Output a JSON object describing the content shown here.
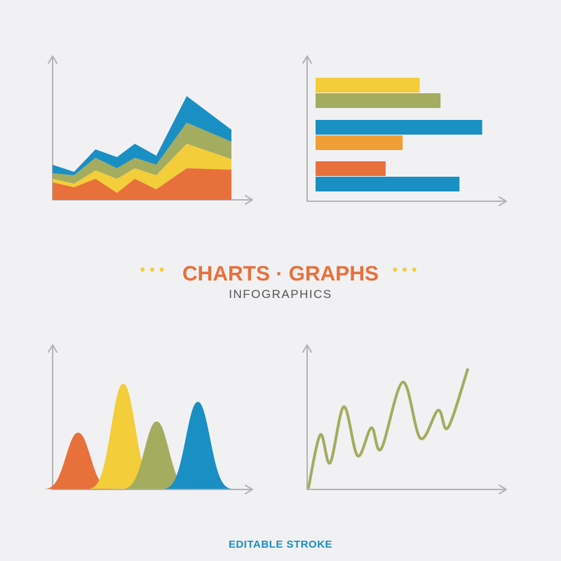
{
  "header": {
    "title": "CHARTS · GRAPHS",
    "subtitle": "INFOGRAPHICS"
  },
  "footer": "EDITABLE STROKE",
  "chart_data": [
    {
      "type": "area",
      "stacked": true,
      "x": [
        0,
        12,
        24,
        36,
        46,
        58,
        75,
        100
      ],
      "xlim": [
        0,
        100
      ],
      "ylim": [
        0,
        200
      ],
      "series": [
        {
          "color": "#e8703a",
          "values": [
            25,
            18,
            30,
            10,
            30,
            15,
            45,
            43
          ]
        },
        {
          "color": "#f3cd3a",
          "values": [
            5,
            5,
            12,
            20,
            15,
            20,
            35,
            15
          ]
        },
        {
          "color": "#a3ac5f",
          "values": [
            8,
            12,
            18,
            15,
            15,
            15,
            30,
            25
          ]
        },
        {
          "color": "#1a8fc4",
          "values": [
            12,
            5,
            12,
            16,
            20,
            13,
            38,
            17
          ]
        }
      ]
    },
    {
      "type": "bar",
      "orientation": "horizontal",
      "xlim": [
        0,
        100
      ],
      "values": [
        55,
        66,
        88,
        46,
        37,
        76
      ],
      "colors": [
        "#f3cd3a",
        "#a3ac5f",
        "#1a8fc4",
        "#f09f35",
        "#e8703a",
        "#1a8fc4"
      ]
    },
    {
      "type": "bell",
      "xlim": [
        0,
        100
      ],
      "ylim": [
        0,
        200
      ],
      "x": [
        13,
        36,
        53,
        74
      ],
      "values": [
        81,
        151,
        97,
        125
      ],
      "colors": [
        "#e8703a",
        "#f3cd3a",
        "#a3ac5f",
        "#1a8fc4"
      ]
    },
    {
      "type": "line",
      "xlim": [
        0,
        100
      ],
      "ylim": [
        0,
        200
      ],
      "color": "#a3ac5f",
      "x": [
        0,
        6,
        11,
        18,
        25,
        32,
        37,
        48,
        57,
        66,
        71,
        81
      ],
      "values": [
        3,
        78,
        38,
        118,
        48,
        88,
        58,
        153,
        73,
        113,
        88,
        171
      ]
    }
  ]
}
